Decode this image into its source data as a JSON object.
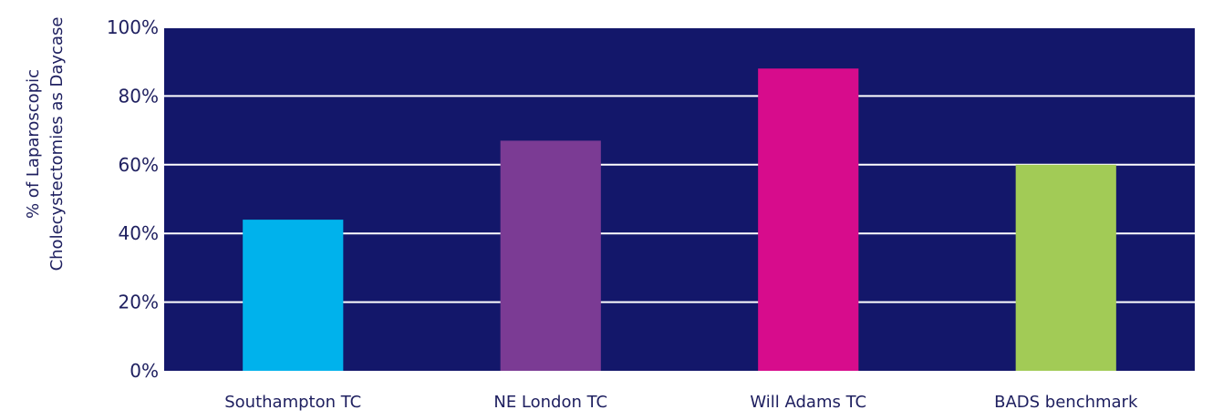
{
  "chart_data": {
    "type": "bar",
    "ylabel_lines": [
      "% of Laparoscopic",
      "Cholecystectomies as Daycase"
    ],
    "categories": [
      "Southampton TC",
      "NE London TC",
      "Will Adams TC",
      "BADS benchmark"
    ],
    "values": [
      44,
      67,
      88,
      60
    ],
    "bar_colors": [
      "#00b2ec",
      "#7b3b94",
      "#d70c8c",
      "#a2cb56"
    ],
    "plot_background": "#13176a",
    "gridline_color": "#ffffff",
    "ylim": [
      0,
      100
    ],
    "y_ticks": [
      0,
      20,
      40,
      60,
      80,
      100
    ],
    "y_tick_labels": [
      "0%",
      "20%",
      "40%",
      "60%",
      "80%",
      "100%"
    ],
    "grid": true
  }
}
